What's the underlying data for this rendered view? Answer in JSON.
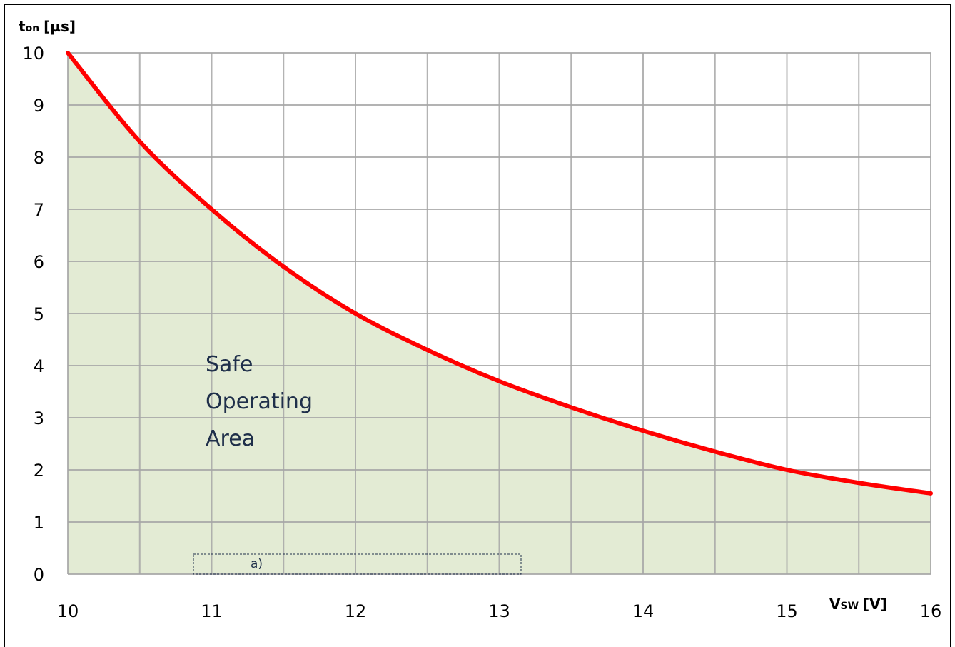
{
  "chart_data": {
    "type": "area",
    "title": "",
    "xlabel": {
      "main": "V",
      "sub": "SW",
      "unit": "[V]"
    },
    "ylabel": {
      "main": "t",
      "sub": "on",
      "unit": "[µs]"
    },
    "xlim": [
      10,
      16
    ],
    "ylim": [
      0,
      10
    ],
    "grid": true,
    "x_ticks": [
      "10",
      "11",
      "12",
      "13",
      "14",
      "15",
      "16"
    ],
    "y_ticks": [
      "0",
      "1",
      "2",
      "3",
      "4",
      "5",
      "6",
      "7",
      "8",
      "9",
      "10"
    ],
    "series": [
      {
        "x": [
          10,
          10.5,
          11,
          11.5,
          12,
          12.5,
          13,
          13.5,
          14,
          14.5,
          15,
          15.5,
          16
        ],
        "y": [
          10,
          8.3,
          7.0,
          5.9,
          5.0,
          4.3,
          3.7,
          3.2,
          2.75,
          2.35,
          2.0,
          1.75,
          1.55
        ],
        "color": "#ff0000",
        "fill": "#e0e9cf"
      }
    ],
    "annotations": {
      "region_label": [
        "Safe",
        "Operating",
        "Area"
      ],
      "note": "a)"
    },
    "colors": {
      "grid": "#a6a6a6",
      "line": "#ff0000",
      "fill": "#e0e9cf",
      "text_dark": "#1f2f4a"
    }
  }
}
